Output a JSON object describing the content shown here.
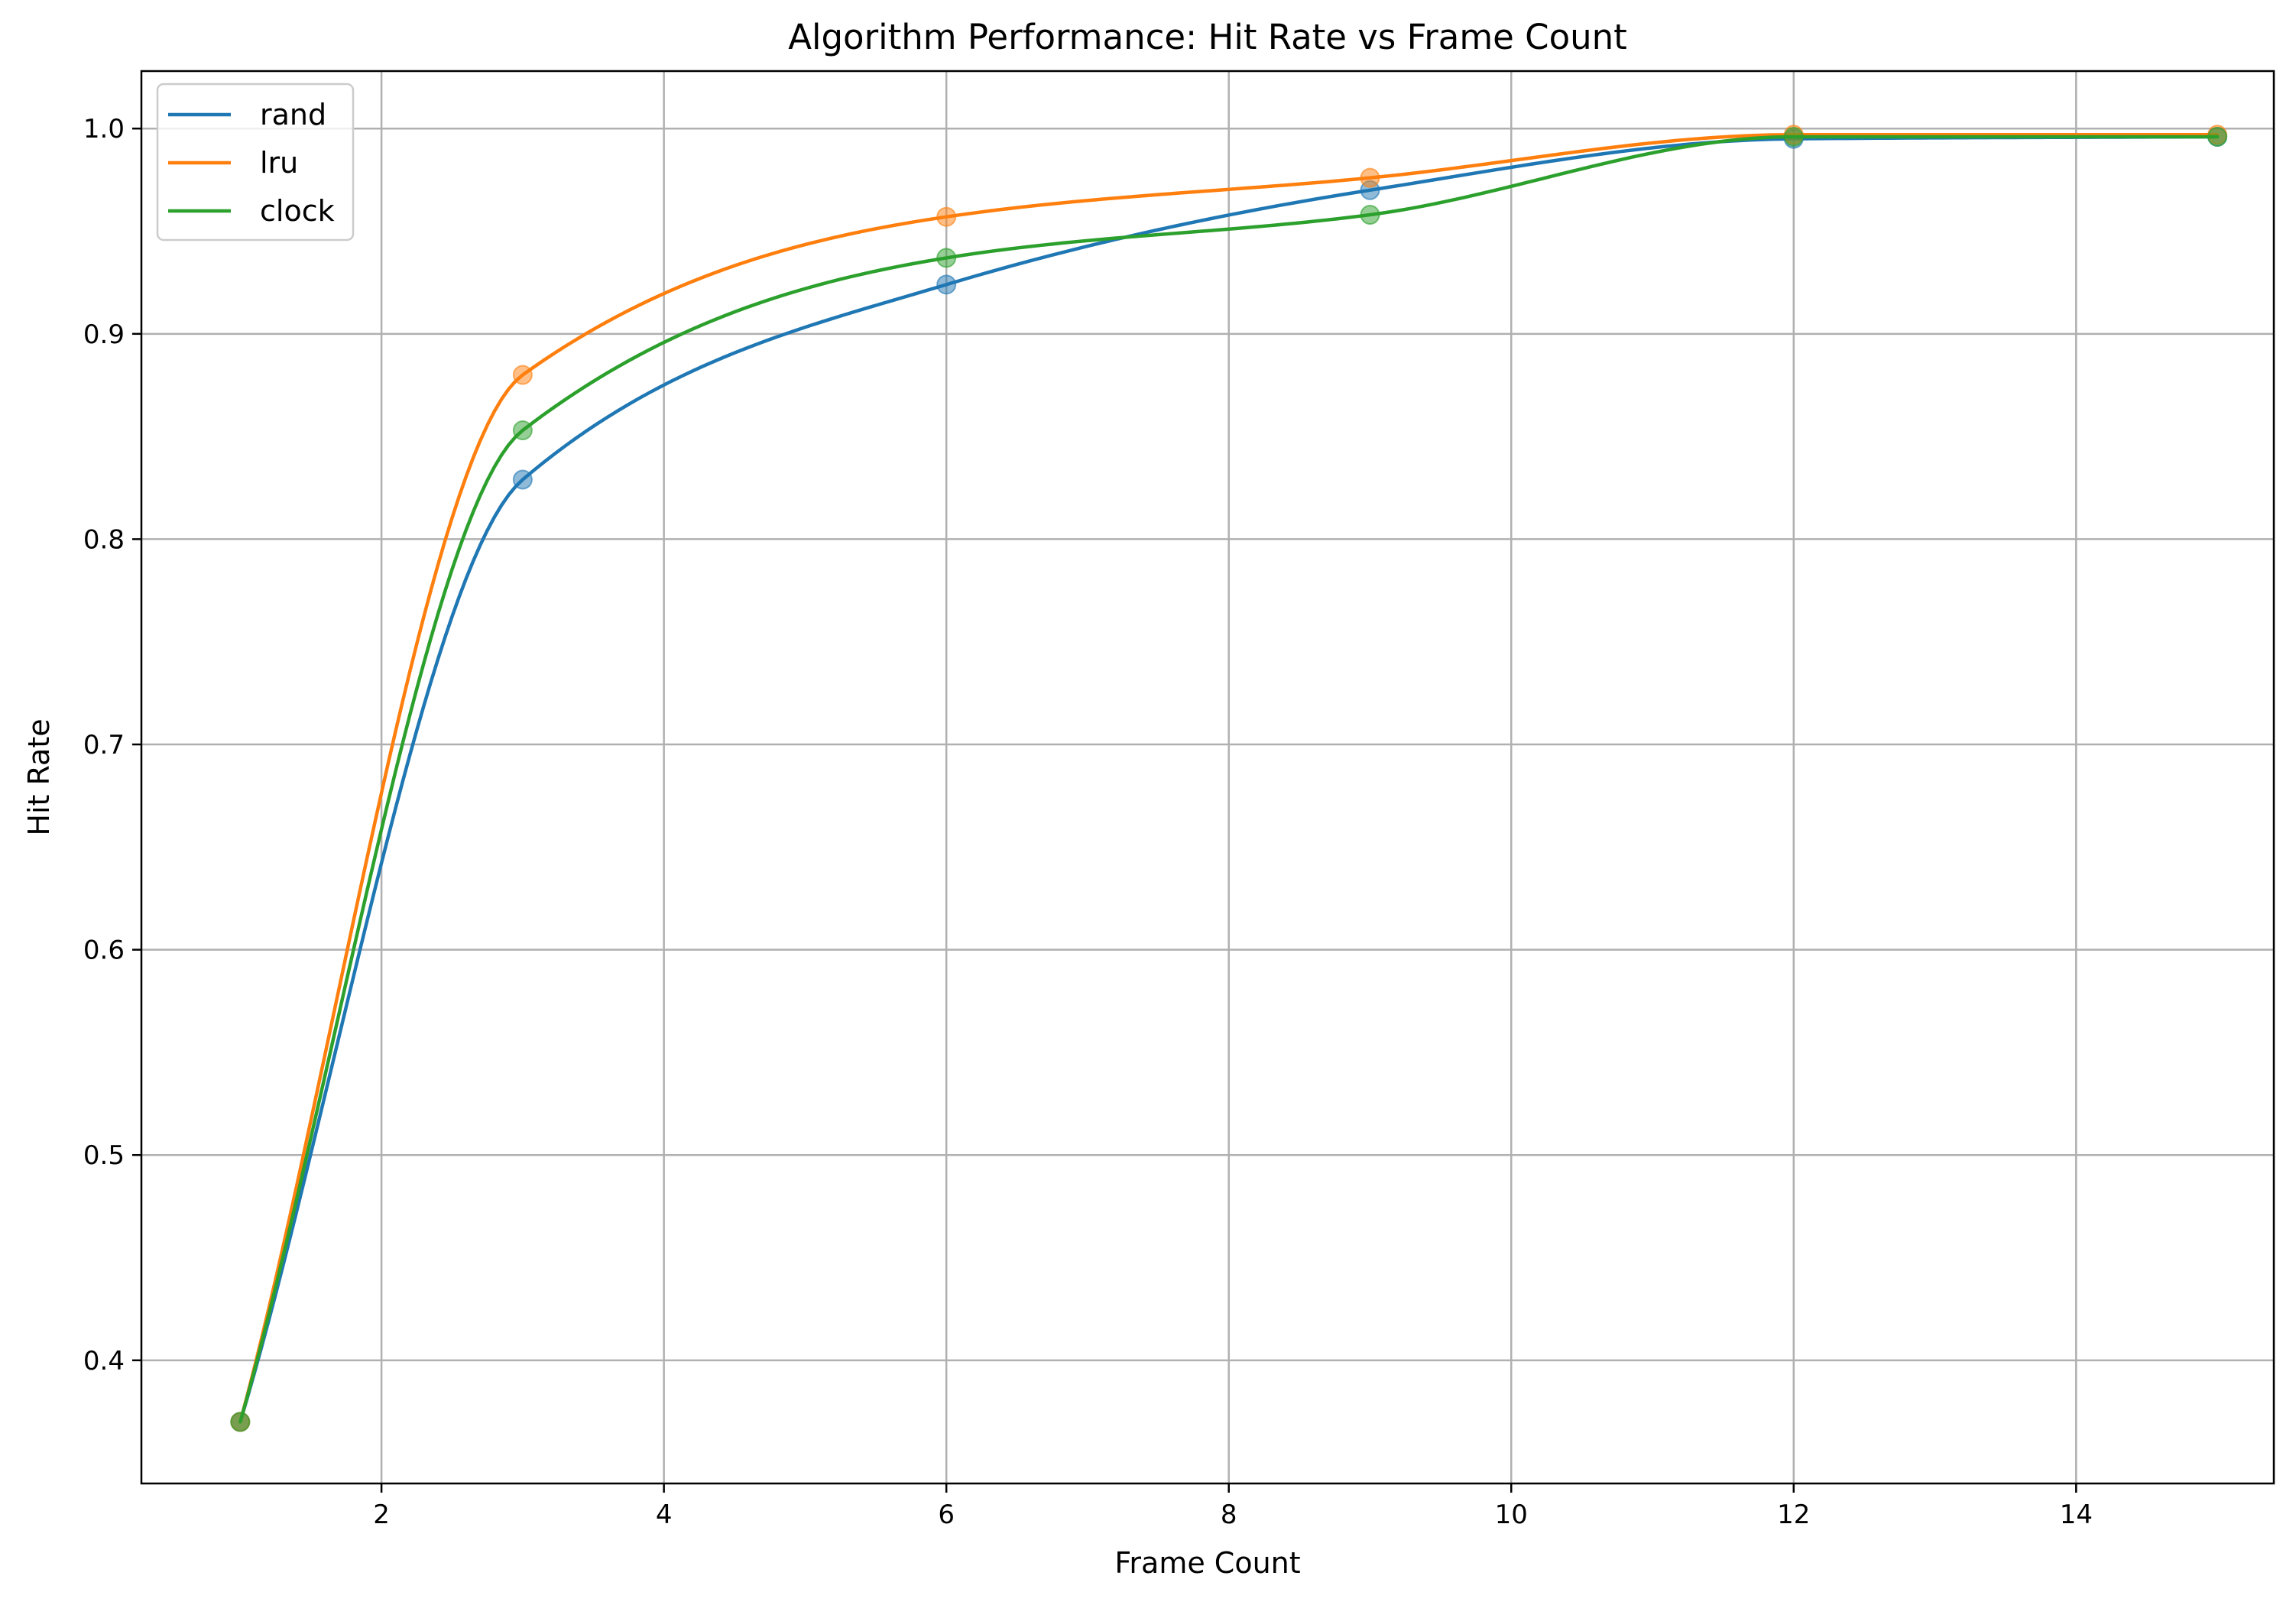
{
  "chart_data": {
    "type": "line",
    "title": "Algorithm Performance: Hit Rate vs Frame Count",
    "xlabel": "Frame Count",
    "ylabel": "Hit Rate",
    "xlim": [
      0.3,
      15.4
    ],
    "ylim": [
      0.34,
      1.028
    ],
    "xticks": [
      2,
      4,
      6,
      8,
      10,
      12,
      14
    ],
    "yticks": [
      0.4,
      0.5,
      0.6,
      0.7,
      0.8,
      0.9,
      1.0
    ],
    "xtick_labels": [
      "2",
      "4",
      "6",
      "8",
      "10",
      "12",
      "14"
    ],
    "ytick_labels": [
      "0.4",
      "0.5",
      "0.6",
      "0.7",
      "0.8",
      "0.9",
      "1.0"
    ],
    "grid": true,
    "legend_position": "top-left",
    "x": [
      1,
      3,
      6,
      9,
      12,
      15
    ],
    "series": [
      {
        "name": "rand",
        "color": "#1f77b4",
        "values": [
          0.37,
          0.829,
          0.924,
          0.97,
          0.995,
          0.996
        ]
      },
      {
        "name": "lru",
        "color": "#ff7f0e",
        "values": [
          0.37,
          0.88,
          0.957,
          0.976,
          0.997,
          0.997
        ]
      },
      {
        "name": "clock",
        "color": "#2ca02c",
        "values": [
          0.37,
          0.853,
          0.937,
          0.958,
          0.996,
          0.996
        ]
      }
    ]
  }
}
